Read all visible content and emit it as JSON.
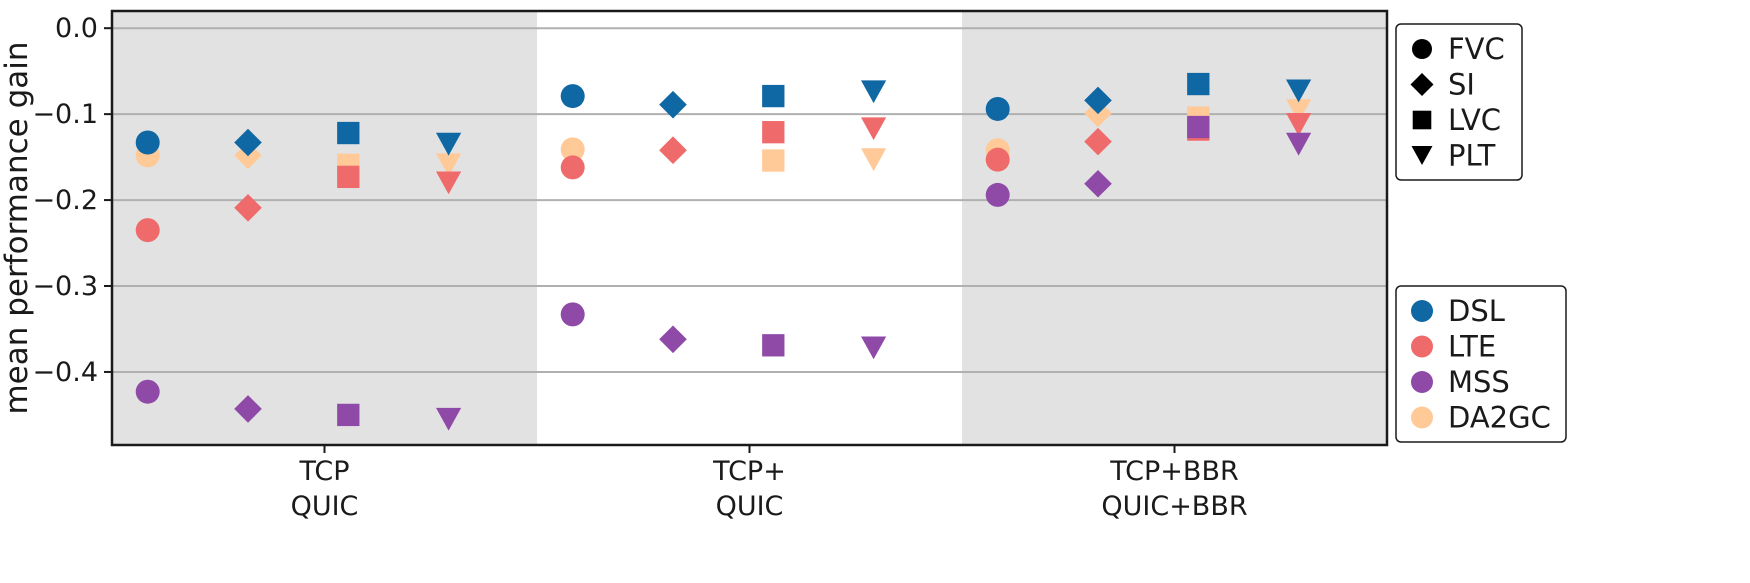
{
  "chart_data": {
    "type": "scatter",
    "title": "",
    "xlabel": "",
    "ylabel": "mean performance gain",
    "ylim": [
      -0.485,
      0.02
    ],
    "yticks": [
      0.0,
      -0.1,
      -0.2,
      -0.3,
      -0.4
    ],
    "ytick_labels": [
      "0.0",
      "−0.1",
      "−0.2",
      "−0.3",
      "−0.4"
    ],
    "grid": "horizontal",
    "groups": [
      {
        "line1": "TCP",
        "line2": "QUIC",
        "shaded": true
      },
      {
        "line1": "TCP+",
        "line2": "QUIC",
        "shaded": false
      },
      {
        "line1": "TCP+BBR",
        "line2": "QUIC+BBR",
        "shaded": true
      }
    ],
    "metrics": [
      {
        "label": "FVC",
        "marker": "circle"
      },
      {
        "label": "SI",
        "marker": "diamond"
      },
      {
        "label": "LVC",
        "marker": "square"
      },
      {
        "label": "PLT",
        "marker": "triangle-down"
      }
    ],
    "series": [
      {
        "name": "DSL",
        "color": "#0f67a3",
        "values": [
          [
            -0.133,
            -0.133,
            -0.122,
            -0.135
          ],
          [
            -0.079,
            -0.089,
            -0.079,
            -0.074
          ],
          [
            -0.094,
            -0.084,
            -0.065,
            -0.073
          ]
        ]
      },
      {
        "name": "LTE",
        "color": "#ef6b6b",
        "values": [
          [
            -0.235,
            -0.209,
            -0.173,
            -0.18
          ],
          [
            -0.162,
            -0.142,
            -0.121,
            -0.117
          ],
          [
            -0.153,
            -0.132,
            -0.118,
            -0.112
          ]
        ]
      },
      {
        "name": "MSS",
        "color": "#8f4aa8",
        "values": [
          [
            -0.423,
            -0.443,
            -0.45,
            -0.455
          ],
          [
            -0.333,
            -0.362,
            -0.369,
            -0.372
          ],
          [
            -0.194,
            -0.181,
            -0.115,
            -0.135
          ]
        ]
      },
      {
        "name": "DA2GC",
        "color": "#ffc998",
        "values": [
          [
            -0.148,
            -0.148,
            -0.159,
            -0.159
          ],
          [
            -0.141,
            -0.142,
            -0.154,
            -0.153
          ],
          [
            -0.142,
            -0.099,
            -0.104,
            -0.096
          ]
        ]
      }
    ],
    "legends": {
      "markers": "top-right-outside",
      "colors": "bottom-right-outside"
    }
  },
  "colors": {
    "shade": "#e2e2e2",
    "grid": "#b0b0b0",
    "frame": "#1a1a1a"
  }
}
